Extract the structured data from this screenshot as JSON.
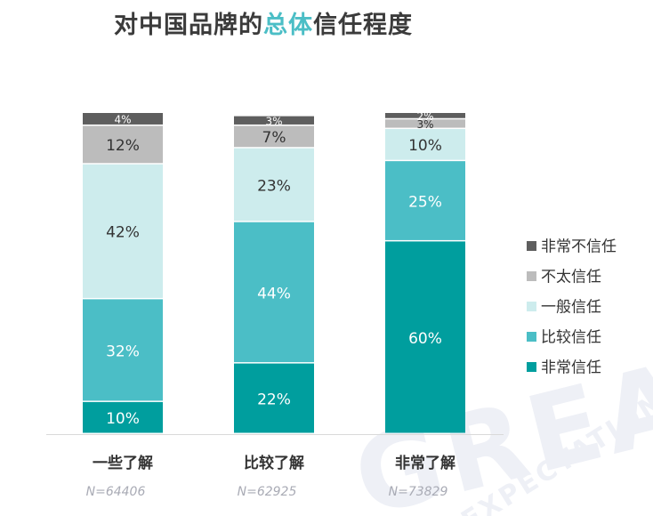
{
  "title": {
    "prefix": "对中国品牌的",
    "highlight": "总体",
    "suffix": "信任程度"
  },
  "watermark": {
    "line1": "GREAT",
    "line2": "EXPECTATIONS"
  },
  "colors": {
    "非常不信任": "#5e5e5e",
    "不太信任": "#bcbcbc",
    "一般信任": "#cdeced",
    "比较信任": "#4bbec6",
    "非常信任": "#009e9e"
  },
  "chart_data": {
    "type": "bar",
    "stacked": true,
    "categories": [
      "一些了解",
      "比较了解",
      "非常了解"
    ],
    "sample_sizes": [
      "N=64406",
      "N=62925",
      "N=73829"
    ],
    "series": [
      {
        "name": "非常信任",
        "values": [
          10,
          22,
          60
        ],
        "labels": [
          "10%",
          "22%",
          "60%"
        ]
      },
      {
        "name": "比较信任",
        "values": [
          32,
          44,
          25
        ],
        "labels": [
          "32%",
          "44%",
          "25%"
        ]
      },
      {
        "name": "一般信任",
        "values": [
          42,
          23,
          10
        ],
        "labels": [
          "42%",
          "23%",
          "10%"
        ]
      },
      {
        "name": "不太信任",
        "values": [
          12,
          7,
          3
        ],
        "labels": [
          "12%",
          "7%",
          "3%"
        ]
      },
      {
        "name": "非常不信任",
        "values": [
          4,
          3,
          2
        ],
        "labels": [
          "4%",
          "3%",
          "2%"
        ]
      }
    ],
    "legend_order": [
      "非常不信任",
      "不太信任",
      "一般信任",
      "比较信任",
      "非常信任"
    ],
    "ylim": [
      0,
      100
    ],
    "grid": false,
    "legend_position": "right"
  }
}
